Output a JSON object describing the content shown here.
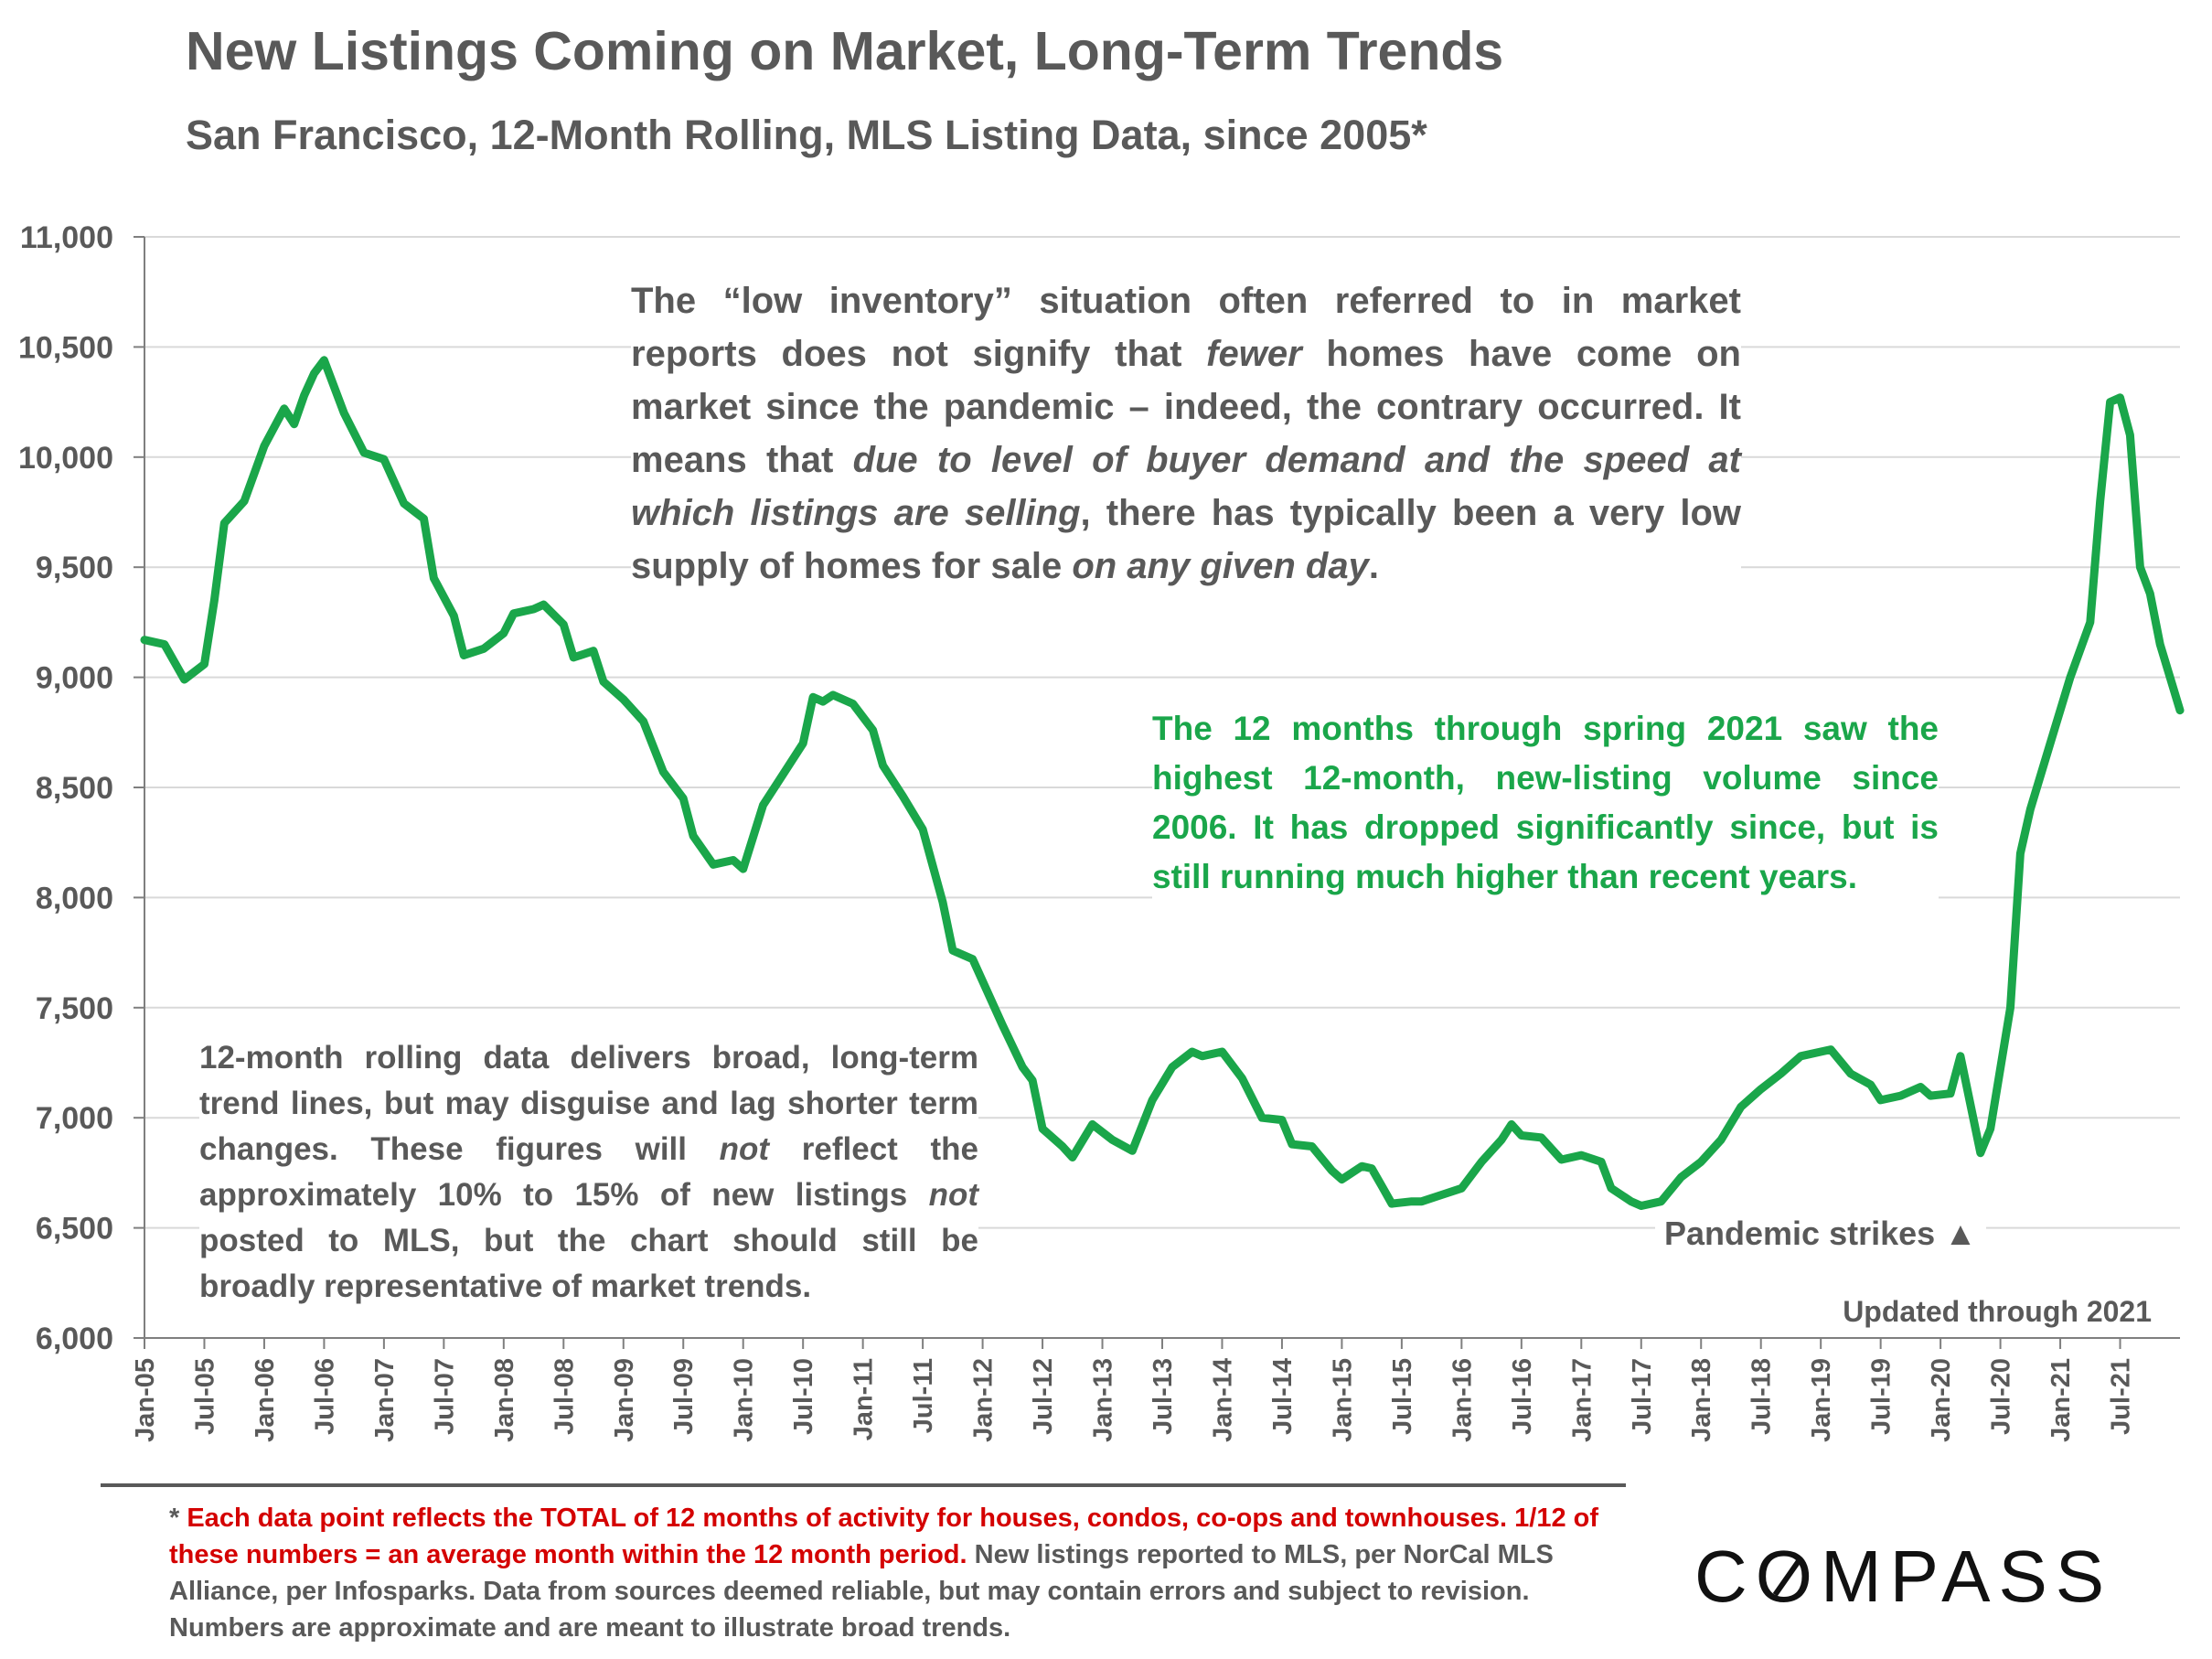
{
  "header": {
    "title": "New Listings Coming on Market, Long-Term Trends",
    "subtitle": "San Francisco, 12-Month Rolling, MLS Listing Data, since 2005*"
  },
  "annotations": {
    "low_inventory": {
      "p1": "The “low inventory” situation often referred to in market reports does not signify that ",
      "em1": "fewer",
      "p2": " homes have come on market since the pandemic – indeed, the contrary occurred. It means that ",
      "em2": "due to level of buyer demand and the speed at which listings are selling",
      "p3": ", there has typically been a very low supply of homes for sale ",
      "em3": "on any given day",
      "p4": "."
    },
    "spring_2021": "The 12 months through spring 2021 saw the highest 12-month, new-listing volume since 2006. It has dropped significantly since, but is still running much higher than recent years.",
    "rolling": {
      "p1": "12-month rolling data delivers broad, long-term trend lines, but may disguise and lag shorter term changes. These figures will ",
      "em1": "not",
      "p2": " reflect the approximately 10% to 15% of new listings ",
      "em2": "not",
      "p3": " posted to MLS, but the chart should still be broadly representative of market trends."
    },
    "pandemic": "Pandemic strikes ▲",
    "updated": "Updated through 2021"
  },
  "footnote": {
    "star": "* ",
    "red": "Each data point reflects the TOTAL of 12 months of activity for houses, condos, co-ops and townhouses. 1/12 of these numbers = an average month within the 12 month period.",
    "rest": " New listings reported to MLS, per NorCal MLS Alliance, per Infosparks. Data from sources deemed reliable, but may contain errors and subject to revision. Numbers are approximate and are meant to illustrate broad trends."
  },
  "logo": {
    "text_before": "C",
    "text_o": "O",
    "text_after": "MPASS"
  },
  "colors": {
    "line": "#1aa64a",
    "text": "#595959",
    "grid": "#d9d9d9",
    "footnote_red": "#d40000"
  },
  "chart_data": {
    "type": "line",
    "title": "New Listings Coming on Market, Long-Term Trends",
    "subtitle": "San Francisco, 12-Month Rolling, MLS Listing Data, since 2005*",
    "ylim": [
      6000,
      11000
    ],
    "yticks": [
      "6,000",
      "6,500",
      "7,000",
      "7,500",
      "8,000",
      "8,500",
      "9,000",
      "9,500",
      "10,000",
      "10,500",
      "11,000"
    ],
    "grid": "horizontal",
    "xticks": [
      "Jan-05",
      "Jul-05",
      "Jan-06",
      "Jul-06",
      "Jan-07",
      "Jul-07",
      "Jan-08",
      "Jul-08",
      "Jan-09",
      "Jul-09",
      "Jan-10",
      "Jul-10",
      "Jan-11",
      "Jul-11",
      "Jan-12",
      "Jul-12",
      "Jan-13",
      "Jul-13",
      "Jan-14",
      "Jul-14",
      "Jan-15",
      "Jul-15",
      "Jan-16",
      "Jul-16",
      "Jan-17",
      "Jul-17",
      "Jan-18",
      "Jul-18",
      "Jan-19",
      "Jul-19",
      "Jan-20",
      "Jul-20",
      "Jan-21",
      "Jul-21"
    ],
    "series": [
      {
        "points": [
          [
            "Jan-05",
            9170
          ],
          [
            "Mar-05",
            9150
          ],
          [
            "May-05",
            8990
          ],
          [
            "Jul-05",
            9060
          ],
          [
            "Aug-05",
            9350
          ],
          [
            "Sep-05",
            9700
          ],
          [
            "Nov-05",
            9800
          ],
          [
            "Jan-06",
            10050
          ],
          [
            "Mar-06",
            10220
          ],
          [
            "Apr-06",
            10150
          ],
          [
            "May-06",
            10280
          ],
          [
            "Jun-06",
            10380
          ],
          [
            "Jul-06",
            10440
          ],
          [
            "Sep-06",
            10200
          ],
          [
            "Nov-06",
            10020
          ],
          [
            "Jan-07",
            9990
          ],
          [
            "Mar-07",
            9790
          ],
          [
            "May-07",
            9720
          ],
          [
            "Jun-07",
            9450
          ],
          [
            "Aug-07",
            9280
          ],
          [
            "Sep-07",
            9100
          ],
          [
            "Nov-07",
            9130
          ],
          [
            "Jan-08",
            9200
          ],
          [
            "Feb-08",
            9290
          ],
          [
            "Apr-08",
            9310
          ],
          [
            "May-08",
            9330
          ],
          [
            "Jul-08",
            9240
          ],
          [
            "Aug-08",
            9090
          ],
          [
            "Oct-08",
            9120
          ],
          [
            "Nov-08",
            8980
          ],
          [
            "Jan-09",
            8900
          ],
          [
            "Mar-09",
            8800
          ],
          [
            "May-09",
            8570
          ],
          [
            "Jul-09",
            8450
          ],
          [
            "Aug-09",
            8280
          ],
          [
            "Oct-09",
            8150
          ],
          [
            "Dec-09",
            8170
          ],
          [
            "Jan-10",
            8130
          ],
          [
            "Mar-10",
            8420
          ],
          [
            "May-10",
            8560
          ],
          [
            "Jul-10",
            8700
          ],
          [
            "Aug-10",
            8910
          ],
          [
            "Sep-10",
            8890
          ],
          [
            "Oct-10",
            8920
          ],
          [
            "Dec-10",
            8880
          ],
          [
            "Feb-11",
            8760
          ],
          [
            "Mar-11",
            8600
          ],
          [
            "May-11",
            8460
          ],
          [
            "Jul-11",
            8310
          ],
          [
            "Sep-11",
            7980
          ],
          [
            "Oct-11",
            7760
          ],
          [
            "Dec-11",
            7720
          ],
          [
            "Mar-12",
            7420
          ],
          [
            "May-12",
            7230
          ],
          [
            "Jun-12",
            7170
          ],
          [
            "Jul-12",
            6950
          ],
          [
            "Sep-12",
            6870
          ],
          [
            "Oct-12",
            6820
          ],
          [
            "Dec-12",
            6970
          ],
          [
            "Feb-13",
            6900
          ],
          [
            "Apr-13",
            6850
          ],
          [
            "Jun-13",
            7080
          ],
          [
            "Aug-13",
            7230
          ],
          [
            "Oct-13",
            7300
          ],
          [
            "Nov-13",
            7280
          ],
          [
            "Jan-14",
            7300
          ],
          [
            "Mar-14",
            7180
          ],
          [
            "May-14",
            7000
          ],
          [
            "Jul-14",
            6990
          ],
          [
            "Aug-14",
            6880
          ],
          [
            "Oct-14",
            6870
          ],
          [
            "Dec-14",
            6760
          ],
          [
            "Jan-15",
            6720
          ],
          [
            "Mar-15",
            6780
          ],
          [
            "Apr-15",
            6770
          ],
          [
            "May-15",
            6690
          ],
          [
            "Jun-15",
            6610
          ],
          [
            "Aug-15",
            6620
          ],
          [
            "Sep-15",
            6620
          ],
          [
            "Nov-15",
            6650
          ],
          [
            "Jan-16",
            6680
          ],
          [
            "Mar-16",
            6800
          ],
          [
            "May-16",
            6900
          ],
          [
            "Jun-16",
            6970
          ],
          [
            "Jul-16",
            6920
          ],
          [
            "Sep-16",
            6910
          ],
          [
            "Nov-16",
            6810
          ],
          [
            "Jan-17",
            6830
          ],
          [
            "Mar-17",
            6800
          ],
          [
            "Apr-17",
            6680
          ],
          [
            "Jun-17",
            6620
          ],
          [
            "Jul-17",
            6600
          ],
          [
            "Sep-17",
            6620
          ],
          [
            "Nov-17",
            6730
          ],
          [
            "Jan-18",
            6800
          ],
          [
            "Mar-18",
            6900
          ],
          [
            "May-18",
            7050
          ],
          [
            "Jul-18",
            7130
          ],
          [
            "Sep-18",
            7200
          ],
          [
            "Nov-18",
            7280
          ],
          [
            "Jan-19",
            7300
          ],
          [
            "Feb-19",
            7310
          ],
          [
            "Apr-19",
            7200
          ],
          [
            "Jun-19",
            7150
          ],
          [
            "Jul-19",
            7080
          ],
          [
            "Sep-19",
            7100
          ],
          [
            "Nov-19",
            7140
          ],
          [
            "Dec-19",
            7100
          ],
          [
            "Feb-20",
            7110
          ],
          [
            "Mar-20",
            7280
          ],
          [
            "May-20",
            6840
          ],
          [
            "Jun-20",
            6950
          ],
          [
            "Aug-20",
            7500
          ],
          [
            "Sep-20",
            8200
          ],
          [
            "Oct-20",
            8400
          ],
          [
            "Dec-20",
            8700
          ],
          [
            "Feb-21",
            9000
          ],
          [
            "Apr-21",
            9250
          ],
          [
            "May-21",
            9800
          ],
          [
            "Jun-21",
            10250
          ],
          [
            "Jul-21",
            10270
          ],
          [
            "Aug-21",
            10100
          ],
          [
            "Sep-21",
            9500
          ],
          [
            "Oct-21",
            9380
          ],
          [
            "Nov-21",
            9150
          ],
          [
            "Dec-21",
            9000
          ],
          [
            "Jan-22",
            8850
          ]
        ]
      }
    ]
  }
}
